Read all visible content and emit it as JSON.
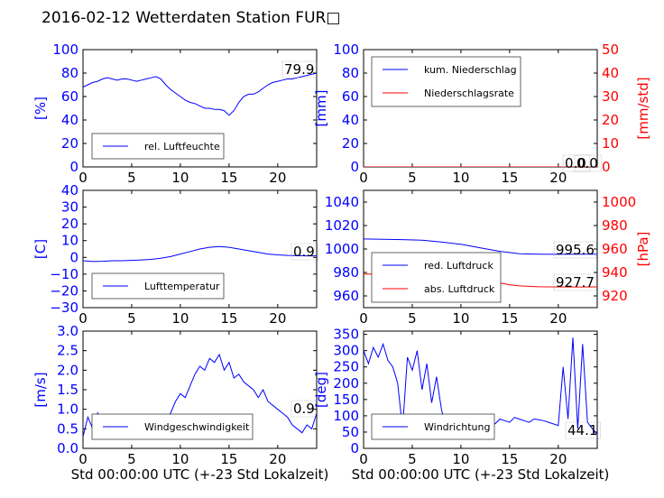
{
  "title": "2016-02-12 Wetterdaten Station FUR□",
  "colors": {
    "primary": "#0000ff",
    "secondary": "#ff0000",
    "light": "#8080ff"
  },
  "chart_data": [
    {
      "id": "humidity",
      "type": "line",
      "ylabel": "[%]",
      "xlabel": "",
      "xlim": [
        0,
        24
      ],
      "ylim": [
        0,
        100
      ],
      "xticks": [
        0,
        5,
        10,
        15,
        20
      ],
      "yticks": [
        0,
        20,
        40,
        60,
        80,
        100
      ],
      "value_label": "79.9",
      "series": [
        {
          "name": "rel. Luftfeuchte",
          "color": "#0000ff",
          "x": [
            0,
            0.5,
            1,
            1.5,
            2,
            2.5,
            3,
            3.5,
            4,
            4.5,
            5,
            5.5,
            6,
            6.5,
            7,
            7.5,
            8,
            8.5,
            9,
            9.5,
            10,
            10.5,
            11,
            11.5,
            12,
            12.5,
            13,
            13.5,
            14,
            14.5,
            15,
            15.5,
            16,
            16.5,
            17,
            17.5,
            18,
            18.5,
            19,
            19.5,
            20,
            20.5,
            21,
            21.5,
            22,
            22.5,
            23,
            23.5,
            24
          ],
          "y": [
            68,
            70,
            72,
            73,
            75,
            76,
            75,
            74,
            75,
            75,
            74,
            73,
            74,
            75,
            76,
            77,
            75,
            70,
            66,
            63,
            60,
            57,
            55,
            54,
            52,
            50,
            50,
            49,
            49,
            48,
            44,
            48,
            55,
            60,
            62,
            62,
            64,
            67,
            70,
            72,
            73,
            74,
            75,
            75,
            76,
            77,
            78,
            79,
            79.9
          ]
        }
      ]
    },
    {
      "id": "precip",
      "type": "line",
      "ylabel": "[mm]",
      "ylabel_right": "[mm/std]",
      "xlabel": "",
      "xlim": [
        0,
        24
      ],
      "ylim": [
        0,
        100
      ],
      "ylim_right": [
        0,
        50
      ],
      "xticks": [
        0,
        5,
        10,
        15,
        20
      ],
      "yticks": [
        0,
        20,
        40,
        60,
        80,
        100
      ],
      "yticks_right": [
        0,
        10,
        20,
        30,
        40,
        50
      ],
      "value_label": "0.0",
      "value_label_right": "0.0",
      "series": [
        {
          "name": "kum. Niederschlag",
          "color": "#0000ff",
          "axis": "left",
          "x": [
            0,
            24
          ],
          "y": [
            0,
            0
          ]
        },
        {
          "name": "Niederschlagsrate",
          "color": "#ff0000",
          "axis": "right",
          "x": [
            0,
            24
          ],
          "y": [
            0,
            0
          ]
        }
      ]
    },
    {
      "id": "temperature",
      "type": "line",
      "ylabel": "[C]",
      "xlabel": "",
      "xlim": [
        0,
        24
      ],
      "ylim": [
        -30,
        40
      ],
      "xticks": [
        0,
        5,
        10,
        15,
        20
      ],
      "yticks": [
        -30,
        -20,
        -10,
        0,
        10,
        20,
        30,
        40
      ],
      "value_label": "0.9",
      "series": [
        {
          "name": "Lufttemperatur",
          "color": "#0000ff",
          "x": [
            0,
            1,
            2,
            3,
            4,
            5,
            6,
            7,
            8,
            9,
            10,
            11,
            12,
            13,
            14,
            15,
            16,
            17,
            18,
            19,
            20,
            21,
            22,
            23,
            24
          ],
          "y": [
            -2,
            -2.5,
            -2.3,
            -2,
            -2,
            -1.8,
            -1.5,
            -1.2,
            -0.5,
            0.5,
            2,
            3.5,
            5,
            6,
            6.5,
            6,
            5,
            4,
            3,
            2,
            1.5,
            1.2,
            1,
            0.9,
            0.9
          ]
        }
      ]
    },
    {
      "id": "pressure",
      "type": "line",
      "ylabel": "",
      "ylabel_right": "[hPa]",
      "xlabel": "",
      "xlim": [
        0,
        24
      ],
      "ylim": [
        950,
        1050
      ],
      "ylim_right": [
        910,
        1010
      ],
      "xticks": [
        0,
        5,
        10,
        15,
        20
      ],
      "yticks": [
        960,
        980,
        1000,
        1020,
        1040
      ],
      "yticks_right": [
        920,
        940,
        960,
        980,
        1000
      ],
      "value_label": "995.6",
      "value_label_right": "927.7",
      "series": [
        {
          "name": "red. Luftdruck",
          "color": "#0000ff",
          "axis": "left",
          "x": [
            0,
            2,
            4,
            6,
            8,
            10,
            12,
            14,
            16,
            18,
            20,
            22,
            24
          ],
          "y": [
            1008.5,
            1008.3,
            1008,
            1007.5,
            1006,
            1004,
            1001,
            998,
            996,
            995.6,
            995.5,
            995.6,
            995.6
          ]
        },
        {
          "name": "abs. Luftdruck",
          "color": "#ff0000",
          "axis": "right",
          "x": [
            0,
            2,
            4,
            6,
            8,
            10,
            12,
            14,
            15,
            16,
            18,
            20,
            22,
            24
          ],
          "y": [
            938.7,
            938.5,
            938.2,
            937.8,
            936.5,
            935,
            933,
            931,
            929.5,
            928.5,
            927.8,
            927.7,
            927.6,
            927.7
          ]
        }
      ]
    },
    {
      "id": "wind_speed",
      "type": "line",
      "ylabel": "[m/s]",
      "xlabel": "Std 00:00:00 UTC (+-23 Std Lokalzeit)",
      "xlim": [
        0,
        24
      ],
      "ylim": [
        0,
        3
      ],
      "xticks": [
        0,
        5,
        10,
        15,
        20
      ],
      "yticks": [
        0.0,
        0.5,
        1.0,
        1.5,
        2.0,
        2.5,
        3.0
      ],
      "ytick_labels": [
        "0.0",
        "0.5",
        "1.0",
        "1.5",
        "2.0",
        "2.5",
        "3.0"
      ],
      "value_label": "0.9",
      "series": [
        {
          "name": "Windgeschwindigkeit",
          "color": "#0000ff",
          "x": [
            0,
            0.5,
            1,
            1.5,
            2,
            2.5,
            3,
            3.5,
            4,
            4.5,
            5,
            5.5,
            6,
            6.5,
            7,
            7.5,
            8,
            8.5,
            9,
            9.5,
            10,
            10.5,
            11,
            11.5,
            12,
            12.5,
            13,
            13.5,
            14,
            14.5,
            15,
            15.5,
            16,
            16.5,
            17,
            17.5,
            18,
            18.5,
            19,
            19.5,
            20,
            20.5,
            21,
            21.5,
            22,
            22.5,
            23,
            23.5,
            24
          ],
          "y": [
            0.3,
            0.8,
            0.5,
            0.9,
            0.4,
            0.7,
            0.3,
            0.6,
            0.8,
            0.4,
            0.6,
            0.5,
            0.7,
            0.4,
            0.6,
            0.8,
            0.5,
            0.7,
            0.9,
            1.2,
            1.4,
            1.3,
            1.6,
            1.9,
            2.1,
            2.0,
            2.3,
            2.2,
            2.4,
            2.0,
            2.2,
            1.8,
            1.9,
            1.7,
            1.6,
            1.5,
            1.3,
            1.5,
            1.2,
            1.1,
            1.0,
            0.9,
            0.8,
            0.6,
            0.5,
            0.4,
            0.6,
            0.5,
            0.9
          ]
        }
      ]
    },
    {
      "id": "wind_dir",
      "type": "line",
      "ylabel": "[deg]",
      "xlabel": "Std 00:00:00 UTC (+-23 Std Lokalzeit)",
      "xlim": [
        0,
        24
      ],
      "ylim": [
        0,
        360
      ],
      "xticks": [
        0,
        5,
        10,
        15,
        20
      ],
      "yticks": [
        0,
        50,
        100,
        150,
        200,
        250,
        300,
        350
      ],
      "value_label": "44.1",
      "series": [
        {
          "name": "Windrichtung",
          "color": "#0000ff",
          "x": [
            0,
            0.5,
            1,
            1.5,
            2,
            2.5,
            3,
            3.5,
            4,
            4.5,
            5,
            5.5,
            6,
            6.5,
            7,
            7.5,
            8,
            8.5,
            9,
            9.5,
            10,
            10.5,
            11,
            11.5,
            12,
            12.5,
            13,
            13.5,
            14,
            14.5,
            15,
            15.5,
            16,
            16.5,
            17,
            17.5,
            18,
            18.5,
            19,
            19.5,
            20,
            20.5,
            21,
            21.5,
            22,
            22.5,
            23,
            23.5,
            24
          ],
          "y": [
            300,
            260,
            310,
            280,
            320,
            270,
            250,
            200,
            60,
            280,
            240,
            300,
            180,
            260,
            140,
            220,
            120,
            60,
            100,
            80,
            90,
            70,
            85,
            95,
            80,
            90,
            85,
            75,
            90,
            85,
            80,
            95,
            90,
            85,
            80,
            90,
            88,
            85,
            80,
            75,
            70,
            250,
            90,
            340,
            60,
            320,
            80,
            60,
            44.1
          ]
        }
      ]
    }
  ]
}
